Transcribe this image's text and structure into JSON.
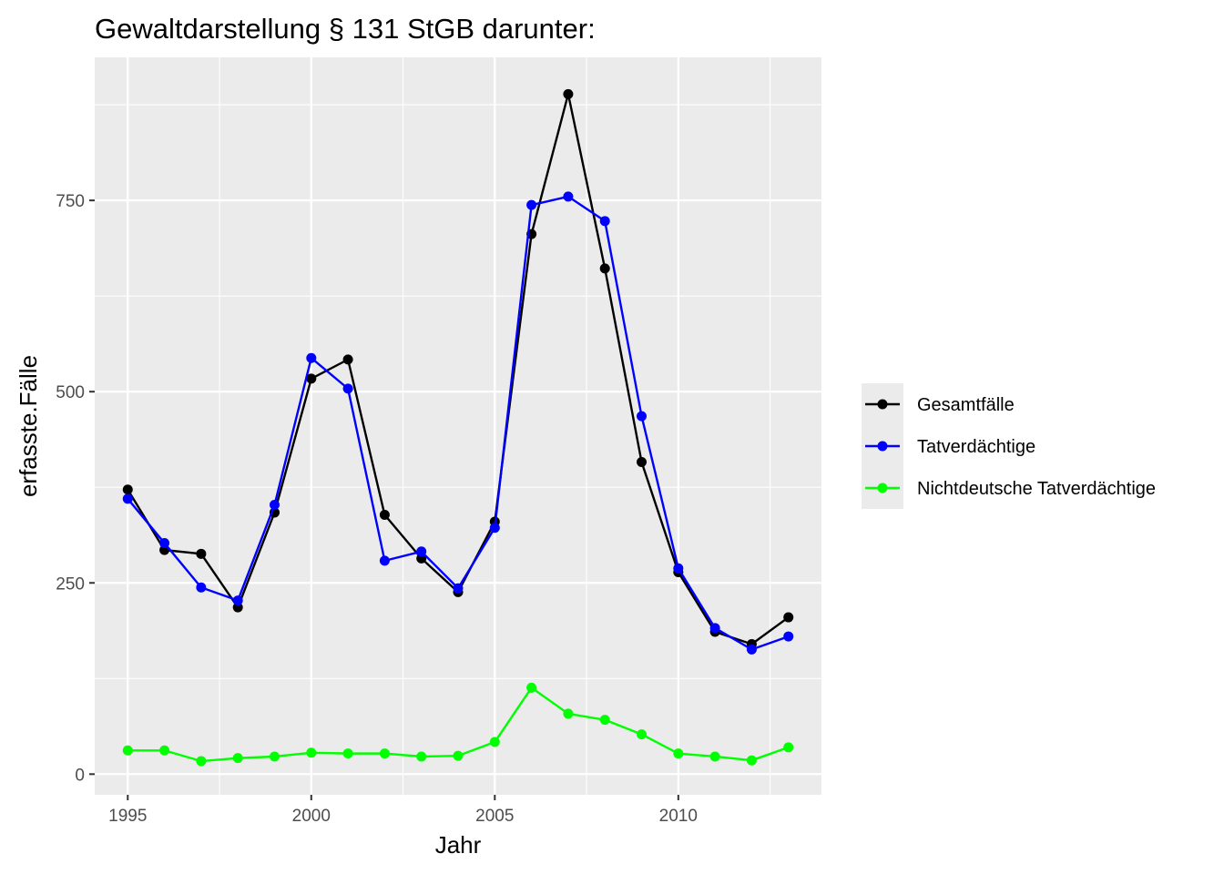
{
  "chart_data": {
    "type": "line",
    "title": "Gewaltdarstellung § 131 StGB darunter:",
    "xlabel": "Jahr",
    "ylabel": "erfasste.Fälle",
    "x": [
      1995,
      1996,
      1997,
      1998,
      1999,
      2000,
      2001,
      2002,
      2003,
      2004,
      2005,
      2006,
      2007,
      2008,
      2009,
      2010,
      2011,
      2012,
      2013
    ],
    "xticks": [
      1995,
      2000,
      2005,
      2010
    ],
    "xtick_labels": [
      "1995",
      "2000",
      "2005",
      "2010"
    ],
    "yticks": [
      0,
      250,
      500,
      750
    ],
    "ytick_labels": [
      "0",
      "250",
      "500",
      "750"
    ],
    "xlim": [
      1994.1,
      2013.9
    ],
    "ylim": [
      -27,
      937
    ],
    "grid": true,
    "legend_position": "right",
    "series": [
      {
        "name": "Gesamtfälle",
        "color": "#000000",
        "values": [
          372,
          293,
          288,
          218,
          342,
          517,
          542,
          339,
          282,
          238,
          330,
          706,
          889,
          661,
          408,
          264,
          186,
          170,
          205
        ]
      },
      {
        "name": "Tatverdächtige",
        "color": "#0000ff",
        "values": [
          360,
          302,
          244,
          227,
          352,
          544,
          504,
          279,
          291,
          243,
          322,
          744,
          755,
          723,
          468,
          269,
          191,
          163,
          180
        ]
      },
      {
        "name": "Nichtdeutsche Tatverdächtige",
        "color": "#00ff00",
        "values": [
          31,
          31,
          17,
          21,
          23,
          28,
          27,
          27,
          23,
          24,
          42,
          113,
          79,
          71,
          52,
          27,
          23,
          18,
          35
        ]
      }
    ]
  },
  "colors": {
    "panel_background": "#ebebeb",
    "grid": "#ffffff",
    "legend_key_background": "#ebebeb"
  }
}
